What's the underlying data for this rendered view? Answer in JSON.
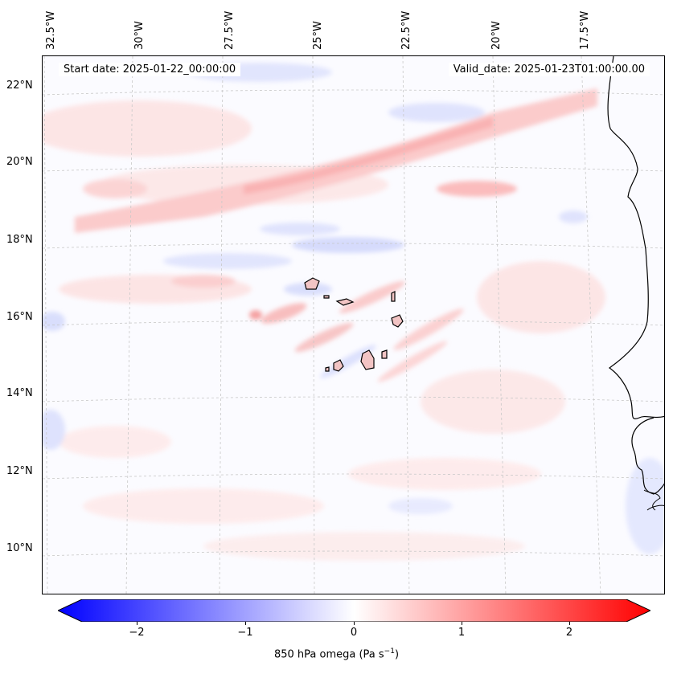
{
  "header": {
    "start_date": "Start date: 2025-01-22_00:00:00",
    "valid_date": "Valid_date: 2025-01-23T01:00:00.00"
  },
  "longitude_labels": [
    "32.5°W",
    "30°W",
    "27.5°W",
    "25°W",
    "22.5°W",
    "20°W",
    "17.5°W"
  ],
  "latitude_labels": [
    "22°N",
    "20°N",
    "18°N",
    "16°N",
    "14°N",
    "12°N",
    "10°N"
  ],
  "colorbar": {
    "ticks": [
      "−2",
      "−1",
      "0",
      "1",
      "2"
    ],
    "tick_values": [
      -2,
      -1,
      0,
      1,
      2
    ],
    "range": [
      -2.5,
      2.5
    ],
    "label": "850 hPa omega (Pa s",
    "label_exponent": "−1",
    "label_close": ")",
    "colormap": "bwr",
    "colors": {
      "negative": "#0000ff",
      "zero": "#ffffff",
      "positive": "#ff0000"
    }
  },
  "colors": {
    "coastline": "#000000",
    "island_fill": "#f2c4c4",
    "gridline": "#c8c8c8"
  }
}
